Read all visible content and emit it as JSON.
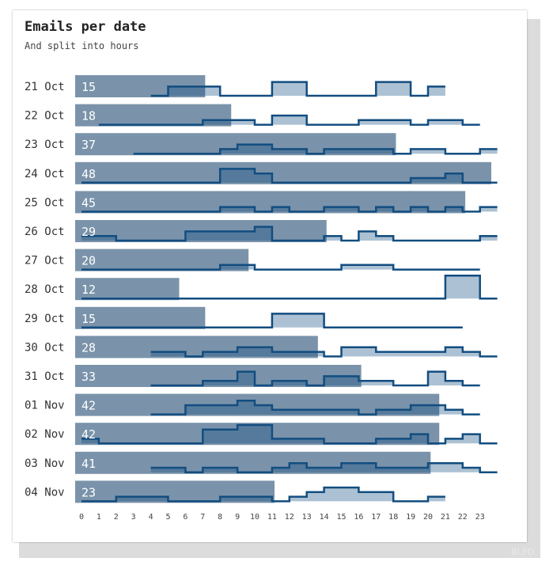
{
  "header": {
    "title": "Emails per date",
    "subtitle": "And split into hours"
  },
  "watermark": "BI.FO",
  "colors": {
    "total_bar": "#7a93aa",
    "hourly_line": "#124d80",
    "hourly_fill": "rgba(18,77,128,0.35)",
    "text": "#333333",
    "card_shadow": "#dcdcdc"
  },
  "chart_data": {
    "type": "bar",
    "title": "Emails per date",
    "subtitle": "And split into hours",
    "hours": [
      0,
      1,
      2,
      3,
      4,
      5,
      6,
      7,
      8,
      9,
      10,
      11,
      12,
      13,
      14,
      15,
      16,
      17,
      18,
      19,
      20,
      21,
      22,
      23
    ],
    "xlim": [
      0,
      24
    ],
    "totals_max": 48,
    "grid": false,
    "dates": [
      {
        "label": "21 Oct",
        "total": 15,
        "hourly": [
          0,
          0,
          0,
          0,
          0,
          0,
          0,
          0,
          0,
          0,
          0,
          0,
          0,
          0,
          0,
          0,
          0,
          0,
          0,
          0,
          0,
          0,
          0,
          0
        ],
        "hourly_shape": [
          null,
          null,
          null,
          null,
          0,
          2,
          2,
          2,
          0,
          0,
          0,
          3,
          3,
          0,
          0,
          0,
          0,
          3,
          3,
          0,
          2,
          null,
          null,
          null
        ]
      },
      {
        "label": "22 Oct",
        "total": 18,
        "hourly_shape": [
          null,
          0,
          0,
          0,
          0,
          0,
          0,
          1,
          1,
          1,
          0,
          2,
          2,
          0,
          0,
          0,
          1,
          1,
          1,
          0,
          1,
          1,
          0,
          null
        ]
      },
      {
        "label": "23 Oct",
        "total": 37,
        "hourly_shape": [
          null,
          null,
          null,
          0,
          0,
          0,
          0,
          0,
          1,
          2,
          2,
          1,
          1,
          0,
          1,
          1,
          1,
          1,
          0,
          1,
          1,
          0,
          0,
          1
        ]
      },
      {
        "label": "24 Oct",
        "total": 48,
        "hourly_shape": [
          0,
          0,
          0,
          0,
          0,
          0,
          0,
          0,
          3,
          3,
          2,
          0,
          0,
          0,
          0,
          0,
          0,
          0,
          0,
          1,
          1,
          2,
          0,
          0
        ]
      },
      {
        "label": "25 Oct",
        "total": 45,
        "hourly_shape": [
          0,
          0,
          0,
          0,
          0,
          0,
          0,
          0,
          1,
          1,
          0,
          1,
          0,
          0,
          1,
          1,
          0,
          1,
          0,
          1,
          0,
          1,
          0,
          1
        ]
      },
      {
        "label": "26 Oct",
        "total": 29,
        "hourly_shape": [
          1,
          1,
          0,
          0,
          0,
          0,
          2,
          2,
          2,
          2,
          3,
          0,
          0,
          0,
          1,
          0,
          2,
          1,
          0,
          0,
          0,
          0,
          0,
          1
        ]
      },
      {
        "label": "27 Oct",
        "total": 20,
        "hourly_shape": [
          0,
          0,
          0,
          0,
          0,
          0,
          0,
          0,
          1,
          1,
          0,
          0,
          0,
          0,
          0,
          1,
          1,
          1,
          0,
          0,
          0,
          0,
          0,
          null
        ]
      },
      {
        "label": "28 Oct",
        "total": 12,
        "hourly_shape": [
          0,
          0,
          0,
          0,
          0,
          0,
          0,
          0,
          0,
          0,
          0,
          0,
          0,
          0,
          0,
          0,
          0,
          0,
          0,
          0,
          0,
          5,
          5,
          0
        ]
      },
      {
        "label": "29 Oct",
        "total": 15,
        "hourly_shape": [
          0,
          0,
          0,
          0,
          0,
          0,
          0,
          0,
          0,
          0,
          0,
          3,
          3,
          3,
          0,
          0,
          0,
          0,
          0,
          0,
          0,
          0,
          null,
          null
        ]
      },
      {
        "label": "30 Oct",
        "total": 28,
        "hourly_shape": [
          null,
          null,
          null,
          null,
          1,
          1,
          0,
          1,
          1,
          2,
          2,
          1,
          1,
          1,
          0,
          2,
          2,
          1,
          1,
          1,
          1,
          2,
          1,
          0
        ]
      },
      {
        "label": "31 Oct",
        "total": 33,
        "hourly_shape": [
          null,
          null,
          null,
          null,
          0,
          0,
          0,
          1,
          1,
          3,
          0,
          1,
          1,
          0,
          2,
          2,
          1,
          1,
          0,
          0,
          3,
          1,
          0,
          null
        ]
      },
      {
        "label": "01 Nov",
        "total": 42,
        "hourly_shape": [
          null,
          null,
          null,
          null,
          0,
          0,
          2,
          2,
          2,
          3,
          2,
          1,
          1,
          1,
          1,
          1,
          0,
          1,
          1,
          2,
          2,
          1,
          0,
          null
        ]
      },
      {
        "label": "02 Nov",
        "total": 42,
        "hourly_shape": [
          1,
          0,
          0,
          0,
          0,
          0,
          0,
          3,
          3,
          4,
          4,
          1,
          1,
          1,
          0,
          0,
          0,
          1,
          1,
          2,
          0,
          1,
          2,
          0
        ]
      },
      {
        "label": "03 Nov",
        "total": 41,
        "hourly_shape": [
          null,
          null,
          null,
          null,
          1,
          1,
          0,
          1,
          1,
          0,
          0,
          1,
          2,
          1,
          1,
          2,
          2,
          1,
          1,
          1,
          2,
          2,
          1,
          0
        ]
      },
      {
        "label": "04 Nov",
        "total": 23,
        "hourly_shape": [
          0,
          0,
          1,
          1,
          1,
          0,
          0,
          0,
          1,
          1,
          1,
          0,
          1,
          2,
          3,
          3,
          2,
          2,
          0,
          0,
          1,
          null,
          null,
          null
        ]
      }
    ]
  }
}
